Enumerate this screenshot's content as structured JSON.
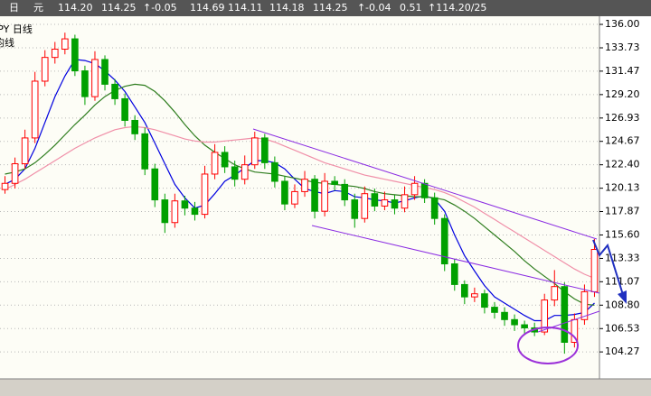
{
  "quote_bar": {
    "items": [
      "日",
      "元",
      "114.20",
      "114.25",
      "↑-0.05",
      "114.69",
      "114.11",
      "114.18",
      "114.25",
      "↑",
      "-0.04",
      "0.51",
      "↑114.20/25"
    ]
  },
  "chart_data": {
    "type": "candlestick",
    "labels": [
      "JPY  日线",
      "均线"
    ],
    "ylim": [
      101.66,
      136.79
    ],
    "yticks": [
      {
        "value": 136,
        "label": "136.00"
      },
      133.73,
      131.47,
      {
        "value": 129.2,
        "label": "129.20"
      },
      126.93,
      124.67,
      {
        "value": 122.4,
        "label": "122.40"
      },
      120.13,
      117.87,
      {
        "value": 115.6,
        "label": "115.60"
      },
      113.33,
      111.07,
      {
        "value": 108.8,
        "label": "108.80"
      },
      106.53,
      104.27
    ],
    "grid": true,
    "up_color": "#ff0000",
    "down_color": "#00a000",
    "open": [
      120.0,
      120.6,
      122.5,
      125.0,
      130.5,
      132.8,
      133.6,
      134.6,
      131.5,
      129.0,
      132.6,
      130.2,
      128.8,
      126.7,
      125.4,
      122.0,
      119.0,
      116.8,
      118.9,
      118.2,
      117.6,
      121.5,
      123.6,
      122.2,
      121.0,
      122.4,
      125.0,
      122.6,
      120.8,
      118.6,
      119.8,
      121.0,
      117.9,
      120.8,
      120.5,
      119.0,
      117.2,
      119.6,
      118.4,
      119.0,
      118.2,
      119.5,
      120.6,
      119.2,
      117.2,
      112.8,
      110.8,
      109.6,
      109.9,
      108.6,
      108.1,
      107.4,
      106.9,
      106.6,
      106.2,
      109.3,
      110.6,
      105.2,
      107.4,
      110.1
    ],
    "high": [
      121.3,
      123.1,
      125.8,
      131.4,
      133.5,
      134.3,
      135.2,
      135.0,
      132.0,
      133.4,
      133.0,
      130.7,
      129.3,
      127.2,
      126.0,
      122.5,
      119.6,
      119.6,
      119.4,
      118.8,
      122.3,
      124.4,
      124.2,
      122.8,
      123.3,
      125.6,
      125.4,
      123.2,
      121.3,
      120.5,
      121.8,
      121.4,
      121.6,
      121.3,
      121.0,
      119.6,
      120.3,
      120.1,
      119.8,
      119.5,
      120.3,
      121.3,
      121.0,
      119.7,
      117.6,
      113.3,
      111.2,
      110.5,
      110.3,
      109.1,
      108.6,
      107.9,
      107.3,
      107.1,
      109.9,
      112.2,
      111.0,
      108.0,
      110.8,
      115.2
    ],
    "low": [
      119.6,
      120.1,
      122.0,
      124.5,
      130.0,
      132.2,
      133.1,
      131.0,
      128.2,
      128.6,
      129.6,
      128.2,
      126.1,
      124.8,
      121.4,
      118.3,
      115.8,
      116.3,
      117.5,
      117.0,
      117.2,
      121.0,
      121.6,
      120.3,
      120.5,
      122.0,
      122.0,
      120.2,
      118.0,
      118.2,
      119.3,
      117.2,
      117.4,
      119.9,
      118.4,
      116.3,
      116.8,
      117.9,
      118.0,
      117.6,
      117.8,
      119.0,
      118.7,
      116.6,
      112.1,
      110.2,
      108.9,
      109.1,
      108.0,
      107.5,
      106.8,
      106.3,
      106.0,
      105.8,
      105.9,
      108.7,
      104.1,
      104.7,
      106.9,
      109.6
    ],
    "close": [
      120.6,
      122.5,
      125.0,
      130.5,
      132.8,
      133.6,
      134.6,
      131.5,
      129.0,
      132.6,
      130.2,
      128.8,
      126.7,
      125.4,
      122.0,
      119.0,
      116.8,
      118.9,
      118.2,
      117.6,
      121.5,
      123.6,
      122.2,
      121.0,
      122.4,
      125.0,
      122.6,
      120.8,
      118.6,
      119.8,
      121.0,
      117.9,
      120.8,
      120.5,
      119.0,
      117.2,
      119.6,
      118.4,
      119.0,
      118.2,
      119.5,
      120.6,
      119.2,
      117.2,
      112.8,
      110.8,
      109.6,
      109.9,
      108.6,
      108.1,
      107.4,
      106.9,
      106.6,
      106.2,
      109.3,
      110.6,
      105.2,
      107.4,
      110.1,
      114.2
    ],
    "moving_averages": [
      {
        "color": "#0000e0",
        "values": [
          120.5,
          121.0,
          122.0,
          124.0,
          126.5,
          129.0,
          131.0,
          132.6,
          132.5,
          132.2,
          131.5,
          130.6,
          129.5,
          128.0,
          126.5,
          124.5,
          122.5,
          120.5,
          119.2,
          118.2,
          118.5,
          119.6,
          120.8,
          121.4,
          122.1,
          122.8,
          122.8,
          122.6,
          122.0,
          121.0,
          120.1,
          119.8,
          119.6,
          119.9,
          119.8,
          119.3,
          119.2,
          119.0,
          118.9,
          118.7,
          118.9,
          119.2,
          119.4,
          119.1,
          117.9,
          115.6,
          113.6,
          112.1,
          110.7,
          109.6,
          109.0,
          108.4,
          107.8,
          107.3,
          107.3,
          107.8,
          107.8,
          107.9,
          108.1,
          109.0
        ]
      },
      {
        "color": "#2e7d1e",
        "values": [
          121.5,
          121.7,
          122.0,
          122.6,
          123.4,
          124.3,
          125.3,
          126.3,
          127.2,
          128.2,
          129.0,
          129.6,
          130.0,
          130.2,
          130.1,
          129.5,
          128.6,
          127.5,
          126.3,
          125.2,
          124.3,
          123.6,
          123.0,
          122.4,
          122.0,
          121.7,
          121.6,
          121.5,
          121.3,
          121.1,
          120.9,
          120.7,
          120.6,
          120.5,
          120.4,
          120.3,
          120.1,
          119.8,
          119.6,
          119.5,
          119.4,
          119.3,
          119.3,
          119.2,
          119.0,
          118.5,
          117.9,
          117.2,
          116.4,
          115.6,
          114.8,
          114.0,
          113.1,
          112.3,
          111.6,
          110.9,
          110.1,
          109.4,
          108.9,
          108.8
        ]
      },
      {
        "color": "#f08fa8",
        "values": [
          120.0,
          120.5,
          121.0,
          121.6,
          122.2,
          122.8,
          123.4,
          124.0,
          124.5,
          125.0,
          125.4,
          125.8,
          126.0,
          126.1,
          126.0,
          125.8,
          125.5,
          125.2,
          124.9,
          124.7,
          124.6,
          124.6,
          124.7,
          124.8,
          124.9,
          125.0,
          124.9,
          124.6,
          124.2,
          123.8,
          123.4,
          123.0,
          122.6,
          122.3,
          122.0,
          121.7,
          121.4,
          121.2,
          121.0,
          120.8,
          120.6,
          120.4,
          120.2,
          120.0,
          119.7,
          119.3,
          118.8,
          118.3,
          117.7,
          117.1,
          116.5,
          115.9,
          115.3,
          114.7,
          114.1,
          113.5,
          112.9,
          112.3,
          111.8,
          111.4
        ]
      }
    ]
  }
}
